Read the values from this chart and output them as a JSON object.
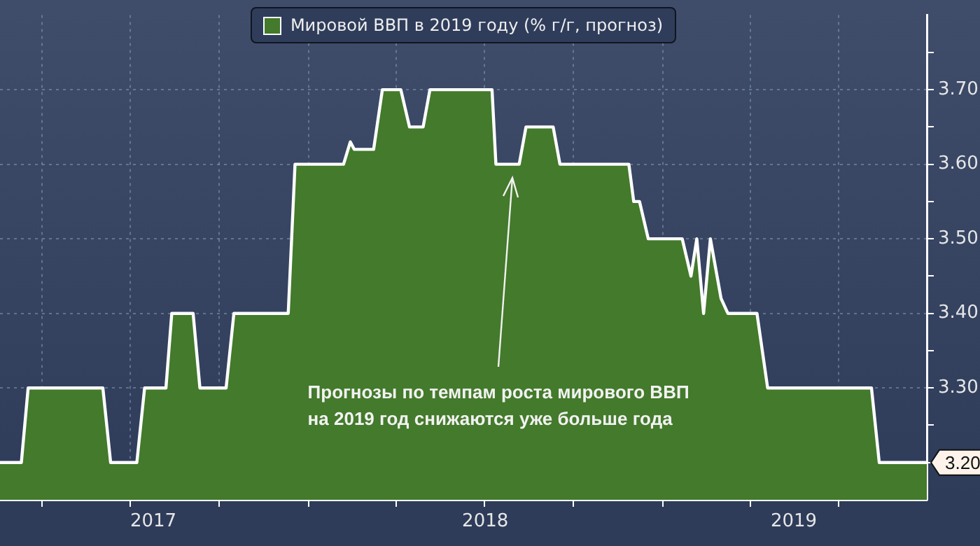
{
  "chart_data": {
    "type": "area",
    "x": [
      "2017-02-17",
      "2017-03-11",
      "2017-03-18",
      "2017-06-03",
      "2017-06-11",
      "2017-07-08",
      "2017-07-16",
      "2017-08-07",
      "2017-08-13",
      "2017-09-04",
      "2017-09-11",
      "2017-10-08",
      "2017-10-16",
      "2017-12-11",
      "2017-12-18",
      "2018-02-06",
      "2018-02-13",
      "2018-02-17",
      "2018-03-09",
      "2018-03-18",
      "2018-04-06",
      "2018-04-15",
      "2018-04-29",
      "2018-05-06",
      "2018-07-09",
      "2018-07-13",
      "2018-08-06",
      "2018-08-13",
      "2018-09-10",
      "2018-09-17",
      "2018-11-27",
      "2018-12-02",
      "2018-12-08",
      "2018-12-17",
      "2019-01-21",
      "2019-01-30",
      "2019-02-05",
      "2019-02-12",
      "2019-02-19",
      "2019-03-02",
      "2019-03-09",
      "2019-04-08",
      "2019-04-19",
      "2019-08-04",
      "2019-08-12",
      "2019-09-30"
    ],
    "series": [
      {
        "name": "Мировой ВВП в 2019 году (% г/г, прогноз)",
        "color": "#437a2b",
        "values": [
          3.2,
          3.2,
          3.3,
          3.3,
          3.2,
          3.2,
          3.3,
          3.3,
          3.4,
          3.4,
          3.3,
          3.3,
          3.4,
          3.4,
          3.6,
          3.6,
          3.63,
          3.62,
          3.62,
          3.7,
          3.7,
          3.65,
          3.65,
          3.7,
          3.7,
          3.6,
          3.6,
          3.65,
          3.65,
          3.6,
          3.6,
          3.55,
          3.55,
          3.5,
          3.5,
          3.45,
          3.5,
          3.4,
          3.5,
          3.42,
          3.4,
          3.4,
          3.3,
          3.3,
          3.2,
          3.2
        ],
        "value_labels": [
          null,
          null,
          null,
          null,
          null,
          null,
          null,
          null,
          null,
          null,
          null,
          null,
          null,
          null,
          null,
          null,
          null,
          null,
          null,
          null,
          null,
          null,
          null,
          null,
          null,
          null,
          null,
          null,
          null,
          null,
          null,
          null,
          null,
          null,
          null,
          null,
          null,
          null,
          null,
          null,
          null,
          null,
          null,
          null,
          null,
          "3.20"
        ]
      }
    ],
    "xlim": [
      "2017-02-17",
      "2019-09-30"
    ],
    "xticks": [
      {
        "value": "2017-04-01",
        "label": null
      },
      {
        "value": "2017-07-01",
        "label": null
      },
      {
        "value": "2017-07-25",
        "label": "2017"
      },
      {
        "value": "2017-10-01",
        "label": null
      },
      {
        "value": "2018-01-01",
        "label": null
      },
      {
        "value": "2018-04-01",
        "label": null
      },
      {
        "value": "2018-07-01",
        "label": null
      },
      {
        "value": "2018-07-02",
        "label": "2018"
      },
      {
        "value": "2018-10-01",
        "label": null
      },
      {
        "value": "2019-01-01",
        "label": null
      },
      {
        "value": "2019-04-01",
        "label": null
      },
      {
        "value": "2019-05-16",
        "label": "2019"
      },
      {
        "value": "2019-07-01",
        "label": null
      }
    ],
    "ylim": [
      3.15,
      3.8
    ],
    "yticks": [
      {
        "value": 3.2,
        "label": null
      },
      {
        "value": 3.25,
        "label": null
      },
      {
        "value": 3.3,
        "label": "3.30"
      },
      {
        "value": 3.35,
        "label": null
      },
      {
        "value": 3.4,
        "label": "3.40"
      },
      {
        "value": 3.45,
        "label": null
      },
      {
        "value": 3.5,
        "label": "3.50"
      },
      {
        "value": 3.55,
        "label": null
      },
      {
        "value": 3.6,
        "label": "3.60"
      },
      {
        "value": 3.65,
        "label": null
      },
      {
        "value": 3.7,
        "label": "3.70"
      },
      {
        "value": 3.75,
        "label": null
      }
    ],
    "annotations": [
      "Прогнозы по темпам роста мирового ВВП\nна 2019 год снижаются уже больше года"
    ],
    "grid": true,
    "legend": "top",
    "line_style": "solid",
    "marker": "none"
  }
}
